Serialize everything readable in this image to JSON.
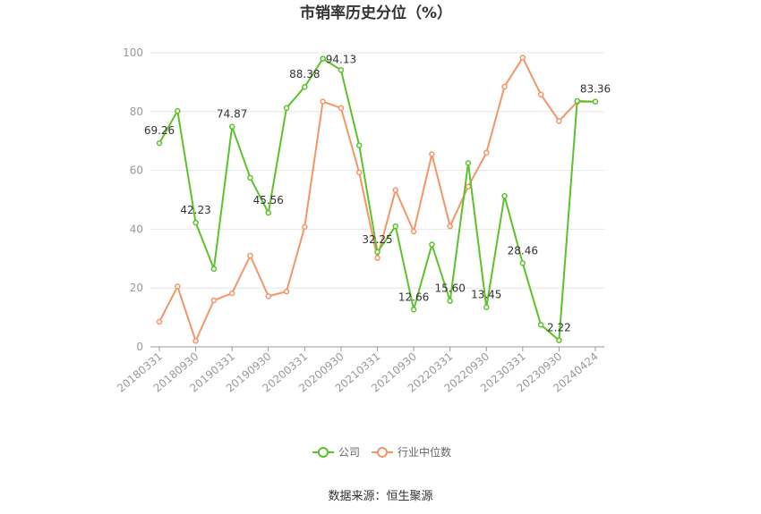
{
  "chart_data": {
    "type": "line",
    "title": "市销率历史分位（%）",
    "ylim": [
      0,
      100
    ],
    "yticks": [
      0,
      20,
      40,
      60,
      80,
      100
    ],
    "x_tick_labels": [
      "20180331",
      "20180930",
      "20190331",
      "20190930",
      "20200331",
      "20200930",
      "20210331",
      "20210930",
      "20220331",
      "20220930",
      "20230331",
      "20230930",
      "20240424"
    ],
    "grid": true,
    "legend_position": "bottom",
    "series": [
      {
        "name": "公司",
        "color": "#5cc22b",
        "values": [
          69.26,
          80.2,
          42.23,
          26.5,
          74.87,
          57.5,
          45.56,
          81.2,
          88.38,
          98.0,
          94.13,
          68.5,
          32.25,
          41.0,
          12.66,
          34.8,
          15.6,
          62.5,
          13.45,
          51.3,
          28.46,
          7.5,
          2.22,
          83.6,
          83.36
        ]
      },
      {
        "name": "行业中位数",
        "color": "#f39567",
        "values": [
          8.5,
          20.5,
          2.0,
          15.8,
          18.2,
          31.0,
          17.2,
          18.8,
          40.8,
          83.4,
          81.2,
          59.3,
          30.2,
          53.3,
          39.2,
          65.5,
          41.0,
          54.5,
          66.0,
          88.5,
          98.3,
          85.8,
          76.8,
          83.3,
          83.36
        ]
      }
    ],
    "data_labels": [
      {
        "series": 0,
        "index": 0,
        "text": "69.26"
      },
      {
        "series": 0,
        "index": 2,
        "text": "42.23"
      },
      {
        "series": 0,
        "index": 4,
        "text": "74.87"
      },
      {
        "series": 0,
        "index": 6,
        "text": "45.56"
      },
      {
        "series": 0,
        "index": 8,
        "text": "88.38"
      },
      {
        "series": 0,
        "index": 10,
        "text": "94.13"
      },
      {
        "series": 0,
        "index": 12,
        "text": "32.25"
      },
      {
        "series": 0,
        "index": 14,
        "text": "12.66"
      },
      {
        "series": 0,
        "index": 16,
        "text": "15.60"
      },
      {
        "series": 0,
        "index": 18,
        "text": "13.45"
      },
      {
        "series": 0,
        "index": 20,
        "text": "28.46"
      },
      {
        "series": 0,
        "index": 22,
        "text": "2.22"
      },
      {
        "series": 0,
        "index": 24,
        "text": "83.36"
      }
    ]
  },
  "source_text": "数据来源：恒生聚源"
}
